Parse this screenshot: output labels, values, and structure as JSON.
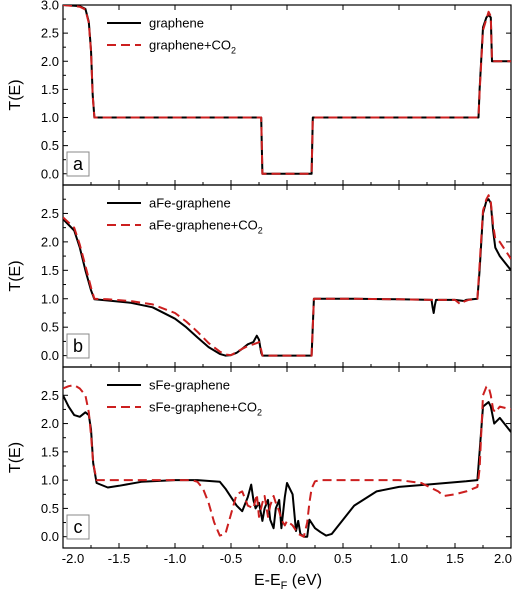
{
  "ylabel": "T(E)",
  "xlabel": {
    "main": "E-E",
    "sub": "F",
    "unit": " (eV)"
  },
  "xticks": [
    "-2.0",
    "-1.5",
    "-1.0",
    "-0.5",
    "0.0",
    "0.5",
    "1.0",
    "1.5",
    "2.0"
  ],
  "colors": {
    "pristine": "#000000",
    "co2": "#cc1f1f"
  },
  "chart_data": [
    {
      "type": "line",
      "panel_label": "a",
      "xlim": [
        -2.0,
        2.0
      ],
      "ylim": [
        -0.2,
        3.0
      ],
      "yticks": [
        "0.0",
        "0.5",
        "1.0",
        "1.5",
        "2.0",
        "2.5",
        "3.0"
      ],
      "series": [
        {
          "name": "graphene",
          "style": "solid",
          "x": [
            -2.0,
            -1.85,
            -1.8,
            -1.77,
            -1.75,
            -1.735,
            -1.72,
            -0.23,
            -0.22,
            0.22,
            0.23,
            1.71,
            1.72,
            1.75,
            1.78,
            1.8,
            1.82,
            1.83,
            1.85,
            2.0
          ],
          "y": [
            3.0,
            2.98,
            2.93,
            2.7,
            2.2,
            1.4,
            1.0,
            1.0,
            0.0,
            0.0,
            1.0,
            1.0,
            1.5,
            2.6,
            2.78,
            2.82,
            2.78,
            2.0,
            2.0,
            2.0
          ]
        },
        {
          "name": "graphene+CO",
          "name_sub": "2",
          "style": "dashed",
          "x": [
            -2.0,
            -1.85,
            -1.8,
            -1.77,
            -1.75,
            -1.735,
            -1.72,
            -0.23,
            -0.22,
            0.22,
            0.23,
            1.71,
            1.72,
            1.75,
            1.78,
            1.8,
            1.82,
            1.83,
            1.85,
            2.0
          ],
          "y": [
            3.0,
            2.97,
            2.92,
            2.68,
            2.18,
            1.38,
            1.0,
            1.0,
            0.0,
            0.0,
            1.0,
            1.0,
            1.45,
            2.55,
            2.75,
            2.88,
            2.8,
            2.0,
            2.0,
            2.0
          ]
        }
      ]
    },
    {
      "type": "line",
      "panel_label": "b",
      "xlim": [
        -2.0,
        2.0
      ],
      "ylim": [
        -0.2,
        3.0
      ],
      "yticks": [
        "0.0",
        "0.5",
        "1.0",
        "1.5",
        "2.0",
        "2.5"
      ],
      "series": [
        {
          "name": "aFe-graphene",
          "style": "solid",
          "x": [
            -2.0,
            -1.9,
            -1.85,
            -1.8,
            -1.75,
            -1.72,
            -1.6,
            -1.4,
            -1.2,
            -1.0,
            -0.9,
            -0.8,
            -0.7,
            -0.6,
            -0.55,
            -0.5,
            -0.45,
            -0.4,
            -0.35,
            -0.3,
            -0.27,
            -0.25,
            -0.23,
            -0.22,
            0.22,
            0.24,
            0.6,
            1.0,
            1.29,
            1.3,
            1.31,
            1.32,
            1.33,
            1.5,
            1.58,
            1.6,
            1.7,
            1.72,
            1.75,
            1.78,
            1.8,
            1.82,
            1.84,
            1.86,
            1.9,
            2.0
          ],
          "y": [
            2.4,
            2.2,
            1.9,
            1.5,
            1.15,
            0.99,
            0.97,
            0.93,
            0.85,
            0.65,
            0.5,
            0.32,
            0.15,
            0.03,
            0.0,
            0.01,
            0.05,
            0.12,
            0.2,
            0.24,
            0.35,
            0.28,
            0.05,
            0.0,
            0.0,
            1.0,
            1.0,
            0.99,
            0.98,
            0.85,
            0.75,
            0.88,
            0.98,
            0.98,
            0.96,
            0.98,
            1.0,
            1.5,
            2.5,
            2.72,
            2.75,
            2.68,
            2.2,
            1.9,
            1.75,
            1.5
          ]
        },
        {
          "name": "aFe-graphene+CO",
          "name_sub": "2",
          "style": "dashed",
          "x": [
            -2.0,
            -1.9,
            -1.85,
            -1.8,
            -1.75,
            -1.72,
            -1.6,
            -1.4,
            -1.2,
            -1.0,
            -0.9,
            -0.8,
            -0.7,
            -0.6,
            -0.55,
            -0.5,
            -0.45,
            -0.4,
            -0.35,
            -0.3,
            -0.27,
            -0.25,
            -0.23,
            -0.22,
            0.22,
            0.24,
            0.6,
            1.0,
            1.3,
            1.5,
            1.55,
            1.58,
            1.62,
            1.7,
            1.72,
            1.75,
            1.78,
            1.8,
            1.82,
            1.84,
            1.86,
            1.9,
            2.0
          ],
          "y": [
            2.43,
            2.25,
            1.95,
            1.58,
            1.2,
            1.0,
            0.99,
            0.96,
            0.9,
            0.75,
            0.6,
            0.42,
            0.22,
            0.07,
            0.02,
            0.01,
            0.06,
            0.12,
            0.17,
            0.2,
            0.22,
            0.24,
            0.1,
            0.0,
            0.0,
            1.0,
            1.0,
            0.99,
            0.98,
            0.98,
            0.9,
            0.95,
            0.98,
            1.0,
            1.6,
            2.55,
            2.75,
            2.82,
            2.7,
            2.3,
            2.05,
            2.0,
            1.7
          ]
        }
      ]
    },
    {
      "type": "line",
      "panel_label": "c",
      "xlim": [
        -2.0,
        2.0
      ],
      "ylim": [
        -0.2,
        3.0
      ],
      "yticks": [
        "0.0",
        "0.5",
        "1.0",
        "1.5",
        "2.0",
        "2.5"
      ],
      "series": [
        {
          "name": "sFe-graphene",
          "style": "solid",
          "x": [
            -2.0,
            -1.95,
            -1.9,
            -1.85,
            -1.8,
            -1.77,
            -1.75,
            -1.73,
            -1.7,
            -1.6,
            -1.5,
            -1.3,
            -1.0,
            -0.8,
            -0.6,
            -0.55,
            -0.5,
            -0.45,
            -0.4,
            -0.35,
            -0.32,
            -0.3,
            -0.28,
            -0.25,
            -0.22,
            -0.2,
            -0.17,
            -0.15,
            -0.12,
            -0.1,
            -0.07,
            -0.05,
            -0.02,
            0.0,
            0.05,
            0.08,
            0.1,
            0.12,
            0.15,
            0.18,
            0.2,
            0.25,
            0.3,
            0.35,
            0.4,
            0.5,
            0.6,
            0.8,
            1.0,
            1.3,
            1.6,
            1.7,
            1.72,
            1.75,
            1.78,
            1.8,
            1.82,
            1.85,
            1.9,
            2.0
          ],
          "y": [
            2.5,
            2.3,
            2.15,
            2.12,
            2.2,
            2.15,
            1.9,
            1.3,
            0.95,
            0.87,
            0.9,
            0.97,
            1.0,
            1.0,
            0.97,
            0.85,
            0.7,
            0.55,
            0.45,
            0.7,
            0.92,
            0.65,
            0.5,
            0.6,
            0.28,
            0.5,
            0.65,
            0.3,
            0.15,
            0.5,
            0.65,
            0.15,
            0.7,
            0.95,
            0.75,
            0.1,
            0.28,
            0.05,
            0.0,
            0.0,
            0.3,
            0.15,
            0.08,
            0.02,
            0.05,
            0.3,
            0.55,
            0.8,
            0.88,
            0.93,
            0.98,
            1.0,
            1.5,
            2.3,
            2.35,
            2.38,
            2.3,
            2.0,
            2.1,
            1.85
          ]
        },
        {
          "name": "sFe-graphene+CO",
          "name_sub": "2",
          "style": "dashed",
          "x": [
            -2.0,
            -1.95,
            -1.9,
            -1.85,
            -1.8,
            -1.77,
            -1.75,
            -1.73,
            -1.7,
            -1.5,
            -1.2,
            -1.0,
            -0.85,
            -0.8,
            -0.75,
            -0.7,
            -0.65,
            -0.6,
            -0.55,
            -0.5,
            -0.45,
            -0.4,
            -0.35,
            -0.3,
            -0.27,
            -0.25,
            -0.22,
            -0.2,
            -0.17,
            -0.15,
            -0.12,
            -0.1,
            -0.07,
            -0.05,
            -0.02,
            0.0,
            0.05,
            0.1,
            0.15,
            0.18,
            0.2,
            0.22,
            0.25,
            0.3,
            0.4,
            0.6,
            0.8,
            1.0,
            1.2,
            1.35,
            1.4,
            1.5,
            1.6,
            1.7,
            1.72,
            1.75,
            1.78,
            1.8,
            1.82,
            1.84,
            1.86,
            1.9,
            2.0
          ],
          "y": [
            2.62,
            2.66,
            2.68,
            2.62,
            2.5,
            2.2,
            1.8,
            1.3,
            1.0,
            1.0,
            1.0,
            1.0,
            1.0,
            0.97,
            0.85,
            0.6,
            0.25,
            0.02,
            0.05,
            0.4,
            0.75,
            0.8,
            0.55,
            0.5,
            0.75,
            0.35,
            0.6,
            0.72,
            0.35,
            0.55,
            0.72,
            0.6,
            0.45,
            0.3,
            0.2,
            0.28,
            0.2,
            0.05,
            0.0,
            0.25,
            0.6,
            0.85,
            0.98,
            1.0,
            1.0,
            1.0,
            1.0,
            1.0,
            0.95,
            0.8,
            0.72,
            0.75,
            0.8,
            0.88,
            1.2,
            2.5,
            2.65,
            2.65,
            2.5,
            2.25,
            2.2,
            2.3,
            2.25
          ]
        }
      ]
    }
  ]
}
